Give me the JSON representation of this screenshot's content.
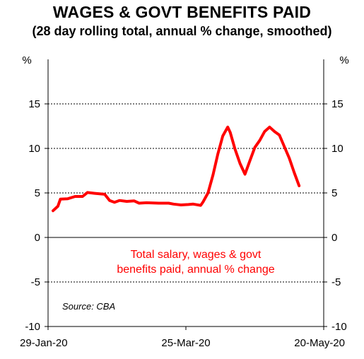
{
  "title": "WAGES & GOVT BENEFITS PAID",
  "subtitle": "(28 day rolling total, annual % change, smoothed)",
  "colors": {
    "series": "#ff0000",
    "axis": "#000000",
    "grid": "#000000",
    "background": "#ffffff"
  },
  "chart_data": {
    "type": "line",
    "title": "WAGES & GOVT BENEFITS PAID",
    "subtitle": "(28 day rolling total, annual % change, smoothed)",
    "ylabel_left": "%",
    "ylabel_right": "%",
    "ylim": [
      -10,
      20
    ],
    "yticks": [
      15,
      10,
      5,
      0,
      -5,
      -10
    ],
    "ytick_labels": [
      "15",
      "10",
      "5",
      "0",
      "-5",
      "-10"
    ],
    "xlim": [
      "2020-01-29",
      "2020-05-20"
    ],
    "xticks": [
      "2020-01-29",
      "2020-03-25",
      "2020-05-20"
    ],
    "xtick_labels": [
      "29-Jan-20",
      "25-Mar-20",
      "20-May-20"
    ],
    "grid": "horizontal dotted",
    "annotation": [
      "Total salary, wages & govt",
      "benefits paid, annual % change"
    ],
    "source": "Source: CBA",
    "series": [
      {
        "color": "#ff0000",
        "points": [
          [
            "2020-01-31",
            3.0
          ],
          [
            "2020-02-02",
            3.5
          ],
          [
            "2020-02-03",
            4.3
          ],
          [
            "2020-02-06",
            4.35
          ],
          [
            "2020-02-09",
            4.6
          ],
          [
            "2020-02-12",
            4.6
          ],
          [
            "2020-02-14",
            5.05
          ],
          [
            "2020-02-17",
            4.95
          ],
          [
            "2020-02-21",
            4.85
          ],
          [
            "2020-02-23",
            4.15
          ],
          [
            "2020-02-25",
            3.95
          ],
          [
            "2020-02-27",
            4.15
          ],
          [
            "2020-03-01",
            4.05
          ],
          [
            "2020-03-04",
            4.1
          ],
          [
            "2020-03-06",
            3.85
          ],
          [
            "2020-03-09",
            3.9
          ],
          [
            "2020-03-14",
            3.85
          ],
          [
            "2020-03-18",
            3.85
          ],
          [
            "2020-03-20",
            3.75
          ],
          [
            "2020-03-23",
            3.65
          ],
          [
            "2020-03-26",
            3.7
          ],
          [
            "2020-03-28",
            3.75
          ],
          [
            "2020-03-31",
            3.6
          ],
          [
            "2020-04-01",
            4.0
          ],
          [
            "2020-04-03",
            5.0
          ],
          [
            "2020-04-05",
            7.0
          ],
          [
            "2020-04-07",
            9.4
          ],
          [
            "2020-04-09",
            11.4
          ],
          [
            "2020-04-11",
            12.4
          ],
          [
            "2020-04-12",
            11.8
          ],
          [
            "2020-04-14",
            9.9
          ],
          [
            "2020-04-16",
            8.3
          ],
          [
            "2020-04-18",
            7.1
          ],
          [
            "2020-04-20",
            8.6
          ],
          [
            "2020-04-22",
            10.1
          ],
          [
            "2020-04-24",
            10.9
          ],
          [
            "2020-04-26",
            11.9
          ],
          [
            "2020-04-28",
            12.4
          ],
          [
            "2020-04-30",
            11.9
          ],
          [
            "2020-05-02",
            11.5
          ],
          [
            "2020-05-04",
            10.2
          ],
          [
            "2020-05-06",
            8.9
          ],
          [
            "2020-05-08",
            7.3
          ],
          [
            "2020-05-10",
            5.8
          ]
        ]
      }
    ]
  }
}
